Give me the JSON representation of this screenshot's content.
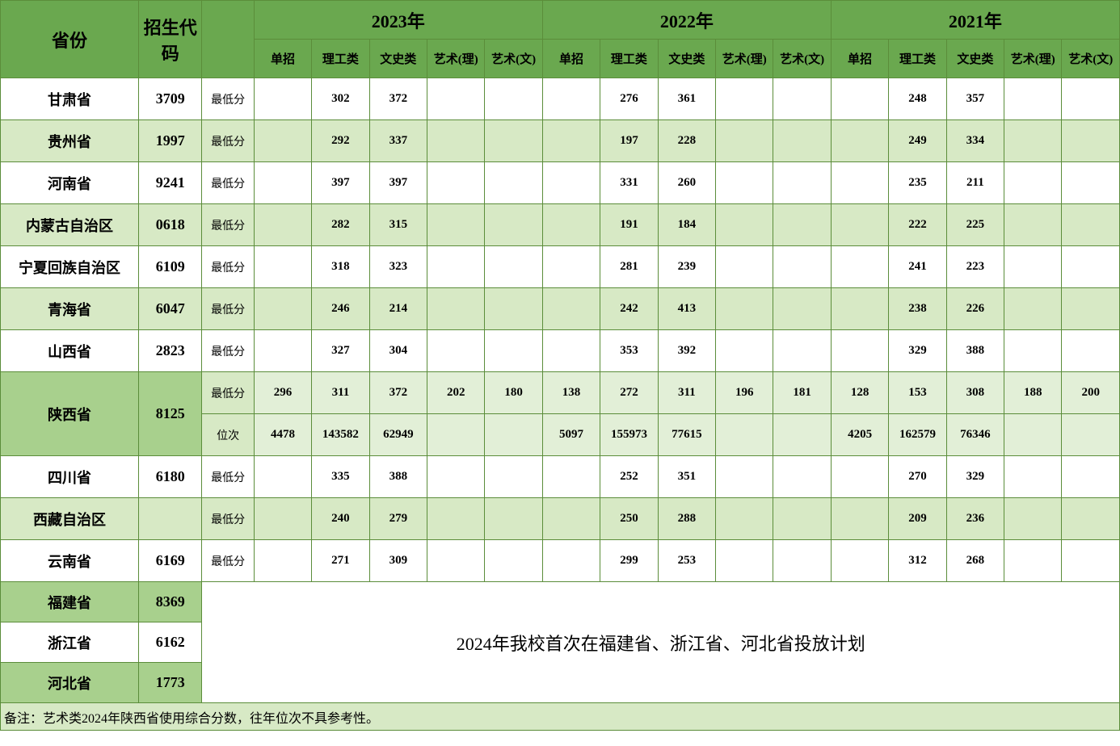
{
  "headers": {
    "province": "省份",
    "code": "招生代码",
    "years": [
      "2023年",
      "2022年",
      "2021年"
    ],
    "subs": [
      "单招",
      "理工类",
      "文史类",
      "艺术(理)",
      "艺术(文)"
    ]
  },
  "metric_min": "最低分",
  "metric_rank": "位次",
  "provinces_regular": [
    {
      "name": "甘肃省",
      "code": "3709",
      "y23": [
        "",
        "302",
        "372",
        "",
        ""
      ],
      "y22": [
        "",
        "276",
        "361",
        "",
        ""
      ],
      "y21": [
        "",
        "248",
        "357",
        "",
        ""
      ],
      "stripe": "odd"
    },
    {
      "name": "贵州省",
      "code": "1997",
      "y23": [
        "",
        "292",
        "337",
        "",
        ""
      ],
      "y22": [
        "",
        "197",
        "228",
        "",
        ""
      ],
      "y21": [
        "",
        "249",
        "334",
        "",
        ""
      ],
      "stripe": "even"
    },
    {
      "name": "河南省",
      "code": "9241",
      "y23": [
        "",
        "397",
        "397",
        "",
        ""
      ],
      "y22": [
        "",
        "331",
        "260",
        "",
        ""
      ],
      "y21": [
        "",
        "235",
        "211",
        "",
        ""
      ],
      "stripe": "odd"
    },
    {
      "name": "内蒙古自治区",
      "code": "0618",
      "y23": [
        "",
        "282",
        "315",
        "",
        ""
      ],
      "y22": [
        "",
        "191",
        "184",
        "",
        ""
      ],
      "y21": [
        "",
        "222",
        "225",
        "",
        ""
      ],
      "stripe": "even"
    },
    {
      "name": "宁夏回族自治区",
      "code": "6109",
      "y23": [
        "",
        "318",
        "323",
        "",
        ""
      ],
      "y22": [
        "",
        "281",
        "239",
        "",
        ""
      ],
      "y21": [
        "",
        "241",
        "223",
        "",
        ""
      ],
      "stripe": "odd"
    },
    {
      "name": "青海省",
      "code": "6047",
      "y23": [
        "",
        "246",
        "214",
        "",
        ""
      ],
      "y22": [
        "",
        "242",
        "413",
        "",
        ""
      ],
      "y21": [
        "",
        "238",
        "226",
        "",
        ""
      ],
      "stripe": "even"
    },
    {
      "name": "山西省",
      "code": "2823",
      "y23": [
        "",
        "327",
        "304",
        "",
        ""
      ],
      "y22": [
        "",
        "353",
        "392",
        "",
        ""
      ],
      "y21": [
        "",
        "329",
        "388",
        "",
        ""
      ],
      "stripe": "odd"
    }
  ],
  "shaanxi": {
    "name": "陕西省",
    "code": "8125",
    "min": {
      "y23": [
        "296",
        "311",
        "372",
        "202",
        "180"
      ],
      "y22": [
        "138",
        "272",
        "311",
        "196",
        "181"
      ],
      "y21": [
        "128",
        "153",
        "308",
        "188",
        "200"
      ]
    },
    "rank": {
      "y23": [
        "4478",
        "143582",
        "62949",
        "",
        ""
      ],
      "y22": [
        "5097",
        "155973",
        "77615",
        "",
        ""
      ],
      "y21": [
        "4205",
        "162579",
        "76346",
        "",
        ""
      ]
    }
  },
  "provinces_after": [
    {
      "name": "四川省",
      "code": "6180",
      "y23": [
        "",
        "335",
        "388",
        "",
        ""
      ],
      "y22": [
        "",
        "252",
        "351",
        "",
        ""
      ],
      "y21": [
        "",
        "270",
        "329",
        "",
        ""
      ],
      "stripe": "odd"
    },
    {
      "name": "西藏自治区",
      "code": "",
      "y23": [
        "",
        "240",
        "279",
        "",
        ""
      ],
      "y22": [
        "",
        "250",
        "288",
        "",
        ""
      ],
      "y21": [
        "",
        "209",
        "236",
        "",
        ""
      ],
      "stripe": "even"
    },
    {
      "name": "云南省",
      "code": "6169",
      "y23": [
        "",
        "271",
        "309",
        "",
        ""
      ],
      "y22": [
        "",
        "299",
        "253",
        "",
        ""
      ],
      "y21": [
        "",
        "312",
        "268",
        "",
        ""
      ],
      "stripe": "odd"
    }
  ],
  "new_provinces": [
    {
      "name": "福建省",
      "code": "8369",
      "bg": "even"
    },
    {
      "name": "浙江省",
      "code": "6162",
      "bg": "odd"
    },
    {
      "name": "河北省",
      "code": "1773",
      "bg": "even"
    }
  ],
  "note_text": "2024年我校首次在福建省、浙江省、河北省投放计划",
  "footer": "备注：艺术类2024年陕西省使用综合分数，往年位次不具参考性。",
  "colors": {
    "border": "#5b8d3a",
    "header_bg": "#6aa84f",
    "row_even_bg": "#d7e9c5",
    "row_odd_bg": "#ffffff",
    "shaanxi_prov_bg": "#a8d08d",
    "shaanxi_data_bg": "#e2efd7"
  },
  "col_widths": {
    "prov": 170,
    "code": 78,
    "metric": 64,
    "data": 71
  }
}
